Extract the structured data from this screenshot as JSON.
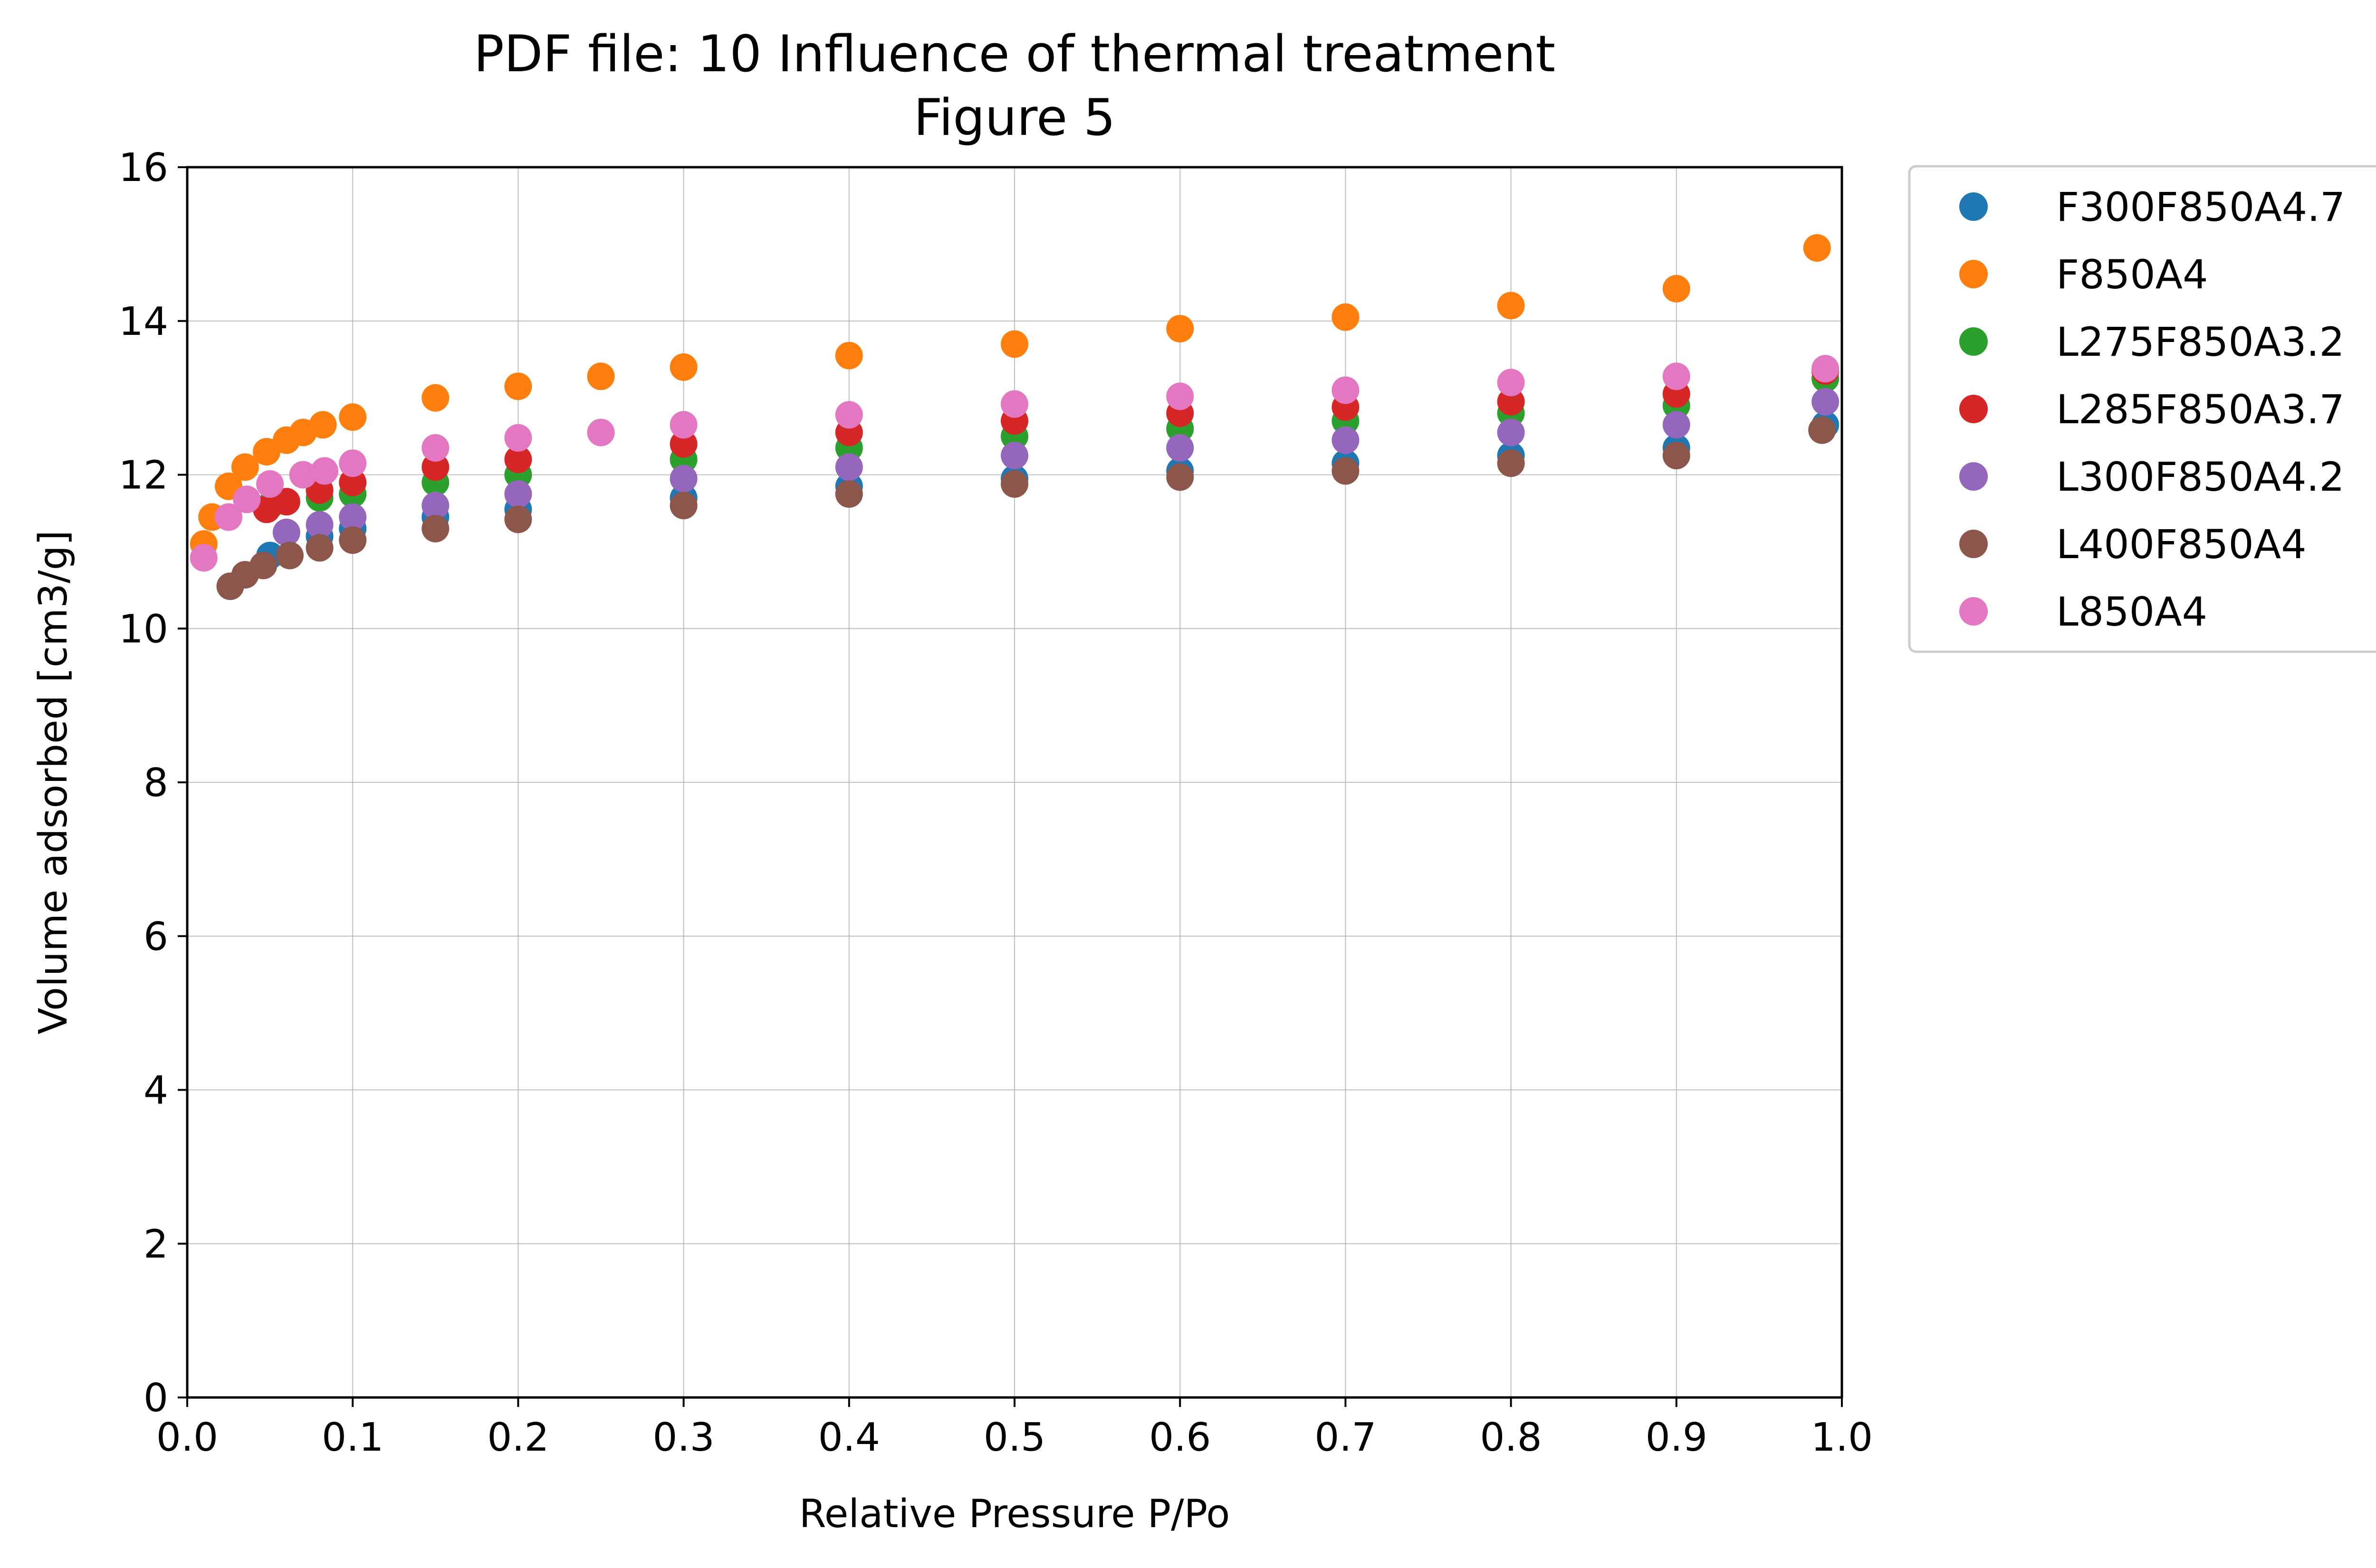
{
  "chart_data": {
    "type": "scatter",
    "title": "PDF file: 10 Influence of thermal treatment",
    "subtitle": "Figure 5",
    "xlabel": "Relative Pressure P/Po",
    "ylabel": "Volume adsorbed [cm3/g]",
    "xlim": [
      0.0,
      1.0
    ],
    "ylim": [
      0,
      16
    ],
    "xticks": [
      "0.0",
      "0.1",
      "0.2",
      "0.3",
      "0.4",
      "0.5",
      "0.6",
      "0.7",
      "0.8",
      "0.9",
      "1.0"
    ],
    "yticks": [
      "0",
      "2",
      "4",
      "6",
      "8",
      "10",
      "12",
      "14",
      "16"
    ],
    "grid": true,
    "legend_position": "outside-right-top",
    "series": [
      {
        "name": "F300F850A4.7",
        "color": "#1f77b4",
        "x": [
          0.05,
          0.08,
          0.1,
          0.15,
          0.2,
          0.3,
          0.4,
          0.5,
          0.6,
          0.7,
          0.8,
          0.9,
          0.99
        ],
        "y": [
          10.95,
          11.2,
          11.3,
          11.45,
          11.55,
          11.7,
          11.85,
          11.95,
          12.05,
          12.15,
          12.25,
          12.35,
          12.65
        ]
      },
      {
        "name": "F850A4",
        "color": "#ff7f0e",
        "x": [
          0.01,
          0.015,
          0.025,
          0.035,
          0.048,
          0.06,
          0.07,
          0.082,
          0.1,
          0.15,
          0.2,
          0.25,
          0.3,
          0.4,
          0.5,
          0.6,
          0.7,
          0.8,
          0.9,
          0.985
        ],
        "y": [
          11.1,
          11.45,
          11.85,
          12.1,
          12.3,
          12.45,
          12.55,
          12.65,
          12.75,
          13.0,
          13.15,
          13.28,
          13.4,
          13.55,
          13.7,
          13.9,
          14.05,
          14.2,
          14.42,
          14.95
        ]
      },
      {
        "name": "L275F850A3.2",
        "color": "#2ca02c",
        "x": [
          0.05,
          0.08,
          0.1,
          0.15,
          0.2,
          0.3,
          0.4,
          0.5,
          0.6,
          0.7,
          0.8,
          0.9,
          0.99
        ],
        "y": [
          11.6,
          11.7,
          11.75,
          11.9,
          12.0,
          12.2,
          12.35,
          12.5,
          12.6,
          12.7,
          12.8,
          12.9,
          13.25
        ]
      },
      {
        "name": "L285F850A3.7",
        "color": "#d62728",
        "x": [
          0.048,
          0.06,
          0.08,
          0.1,
          0.15,
          0.2,
          0.3,
          0.4,
          0.5,
          0.6,
          0.7,
          0.8,
          0.9,
          0.99
        ],
        "y": [
          11.55,
          11.65,
          11.8,
          11.9,
          12.1,
          12.2,
          12.4,
          12.55,
          12.7,
          12.8,
          12.88,
          12.95,
          13.05,
          13.35
        ]
      },
      {
        "name": "L300F850A4.2",
        "color": "#9467bd",
        "x": [
          0.06,
          0.08,
          0.1,
          0.15,
          0.2,
          0.3,
          0.4,
          0.5,
          0.6,
          0.7,
          0.8,
          0.9,
          0.99
        ],
        "y": [
          11.25,
          11.35,
          11.45,
          11.6,
          11.75,
          11.95,
          12.1,
          12.25,
          12.35,
          12.45,
          12.55,
          12.65,
          12.95
        ]
      },
      {
        "name": "L400F850A4",
        "color": "#8c564b",
        "x": [
          0.026,
          0.035,
          0.046,
          0.062,
          0.08,
          0.1,
          0.15,
          0.2,
          0.3,
          0.4,
          0.5,
          0.6,
          0.7,
          0.8,
          0.9,
          0.988
        ],
        "y": [
          10.55,
          10.7,
          10.82,
          10.95,
          11.05,
          11.15,
          11.3,
          11.42,
          11.6,
          11.75,
          11.88,
          11.97,
          12.05,
          12.15,
          12.25,
          12.58
        ]
      },
      {
        "name": "L850A4",
        "color": "#e377c2",
        "x": [
          0.01,
          0.025,
          0.036,
          0.05,
          0.07,
          0.083,
          0.1,
          0.15,
          0.2,
          0.25,
          0.3,
          0.4,
          0.5,
          0.6,
          0.7,
          0.8,
          0.9,
          0.99
        ],
        "y": [
          10.92,
          11.45,
          11.68,
          11.88,
          12.0,
          12.05,
          12.15,
          12.35,
          12.48,
          12.55,
          12.65,
          12.78,
          12.92,
          13.02,
          13.1,
          13.2,
          13.28,
          13.38
        ]
      }
    ]
  }
}
